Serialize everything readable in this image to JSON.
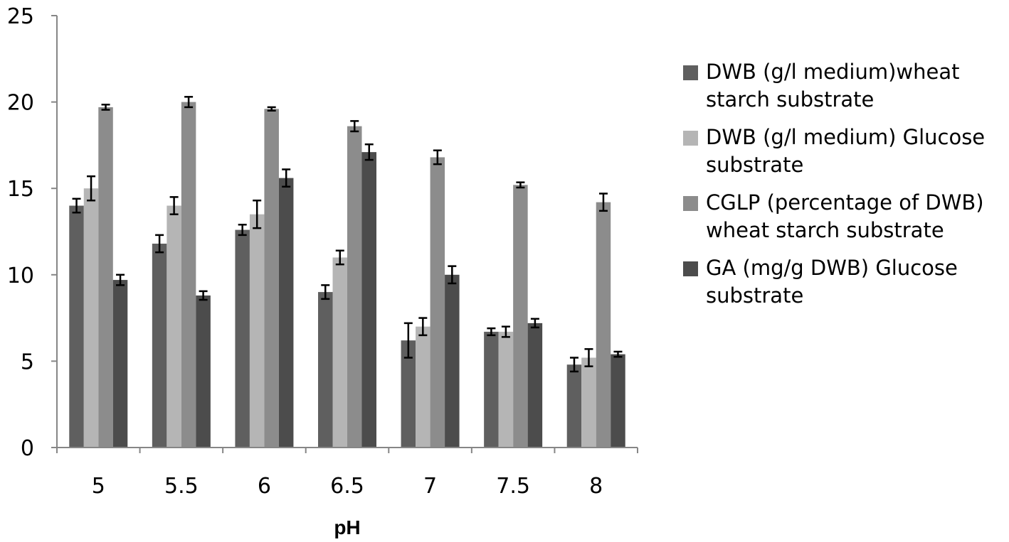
{
  "chart_data": {
    "type": "bar",
    "title": "",
    "xlabel": "pH",
    "ylabel": "",
    "ylim": [
      0,
      25
    ],
    "yticks": [
      "0",
      "5",
      "10",
      "15",
      "20",
      "25"
    ],
    "categories": [
      "5",
      "5.5",
      "6",
      "6.5",
      "7",
      "7.5",
      "8"
    ],
    "legend_position": "right",
    "series": [
      {
        "name": "DWB (g/l medium)wheat starch substrate",
        "legend_lines": [
          "DWB (g/l medium)wheat",
          "starch substrate"
        ],
        "color": "#5f5f5f",
        "values": [
          14.0,
          11.8,
          12.6,
          9.0,
          6.2,
          6.7,
          4.8
        ],
        "errors": [
          0.4,
          0.5,
          0.3,
          0.4,
          1.0,
          0.2,
          0.4
        ]
      },
      {
        "name": "DWB (g/l medium) Glucose substrate",
        "legend_lines": [
          "DWB (g/l medium) Glucose",
          "substrate"
        ],
        "color": "#b5b5b5",
        "values": [
          15.0,
          14.0,
          13.5,
          11.0,
          7.0,
          6.7,
          5.2
        ],
        "errors": [
          0.7,
          0.5,
          0.8,
          0.4,
          0.5,
          0.3,
          0.5
        ]
      },
      {
        "name": "CGLP (percentage of DWB) wheat starch substrate",
        "legend_lines": [
          "CGLP (percentage of DWB)",
          "wheat starch substrate"
        ],
        "color": "#8c8c8c",
        "values": [
          19.7,
          20.0,
          19.6,
          18.6,
          16.8,
          15.2,
          14.2
        ],
        "errors": [
          0.15,
          0.3,
          0.1,
          0.3,
          0.4,
          0.15,
          0.5
        ]
      },
      {
        "name": "GA (mg/g DWB) Glucose substrate",
        "legend_lines": [
          "GA (mg/g DWB) Glucose",
          "substrate"
        ],
        "color": "#4c4c4c",
        "values": [
          9.7,
          8.8,
          15.6,
          17.1,
          10.0,
          7.2,
          5.4
        ],
        "errors": [
          0.3,
          0.25,
          0.5,
          0.45,
          0.5,
          0.25,
          0.15
        ]
      }
    ]
  }
}
